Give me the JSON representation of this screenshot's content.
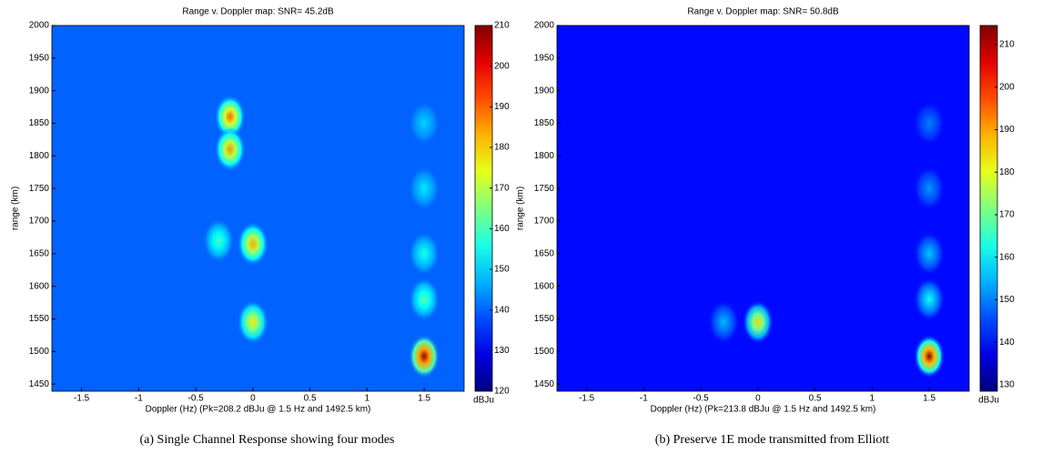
{
  "chart_data": [
    {
      "type": "heatmap",
      "title": "Range v. Doppler map: SNR= 45.2dB",
      "x_label": "Doppler (Hz) (Pk=208.2 dBJu @  1.5 Hz and 1492.5 km)",
      "y_label": "range (km)",
      "colorbar_label": "dBJu",
      "caption": "(a) Single Channel Response showing four modes",
      "xlim": [
        -1.76,
        1.85
      ],
      "xticks": [
        -1.5,
        -1,
        -0.5,
        0,
        0.5,
        1,
        1.5
      ],
      "ylim": [
        1439,
        2000
      ],
      "yticks": [
        1450,
        1500,
        1550,
        1600,
        1650,
        1700,
        1750,
        1800,
        1850,
        1900,
        1950,
        2000
      ],
      "clim": [
        120,
        210
      ],
      "cticks": [
        120,
        130,
        140,
        150,
        160,
        170,
        180,
        190,
        200,
        210
      ],
      "background_level": 140,
      "features": [
        {
          "doppler": -0.2,
          "range": 1860,
          "level": 190
        },
        {
          "doppler": -0.2,
          "range": 1810,
          "level": 186
        },
        {
          "doppler": 0,
          "range": 1665,
          "level": 184
        },
        {
          "doppler": -0.3,
          "range": 1670,
          "level": 160
        },
        {
          "doppler": 0,
          "range": 1545,
          "level": 178
        },
        {
          "doppler": 1.5,
          "range": 1850,
          "level": 150
        },
        {
          "doppler": 1.5,
          "range": 1750,
          "level": 152
        },
        {
          "doppler": 1.5,
          "range": 1650,
          "level": 156
        },
        {
          "doppler": 1.5,
          "range": 1580,
          "level": 162
        },
        {
          "doppler": 1.5,
          "range": 1492.5,
          "level": 208.2
        }
      ]
    },
    {
      "type": "heatmap",
      "title": "Range v. Doppler map: SNR= 50.8dB",
      "x_label": "Doppler (Hz) (Pk=213.8 dBJu @  1.5 Hz and 1492.5 km)",
      "y_label": "range (km)",
      "colorbar_label": "dBJu",
      "caption": "(b) Preserve 1E mode transmitted from Elliott",
      "xlim": [
        -1.76,
        1.85
      ],
      "xticks": [
        -1.5,
        -1,
        -0.5,
        0,
        0.5,
        1,
        1.5
      ],
      "ylim": [
        1439,
        2000
      ],
      "yticks": [
        1450,
        1500,
        1550,
        1600,
        1650,
        1700,
        1750,
        1800,
        1850,
        1900,
        1950,
        2000
      ],
      "clim": [
        128.5,
        214.5
      ],
      "cticks": [
        130,
        140,
        150,
        160,
        170,
        180,
        190,
        200,
        210
      ],
      "background_level": 140,
      "features": [
        {
          "doppler": 0,
          "range": 1545,
          "level": 186
        },
        {
          "doppler": -0.3,
          "range": 1545,
          "level": 155
        },
        {
          "doppler": 1.5,
          "range": 1850,
          "level": 150
        },
        {
          "doppler": 1.5,
          "range": 1750,
          "level": 152
        },
        {
          "doppler": 1.5,
          "range": 1650,
          "level": 156
        },
        {
          "doppler": 1.5,
          "range": 1580,
          "level": 162
        },
        {
          "doppler": 1.5,
          "range": 1492.5,
          "level": 213.8
        }
      ]
    }
  ]
}
